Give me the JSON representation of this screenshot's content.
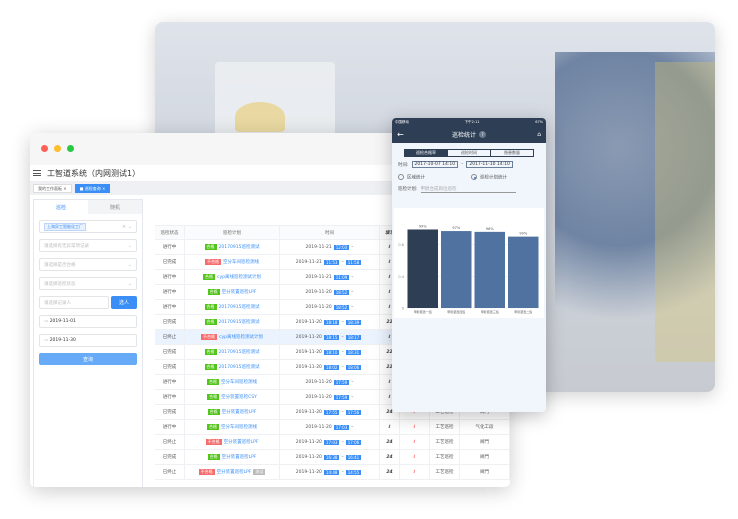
{
  "app": {
    "title": "工智道系统（内网测试1）",
    "tabs": [
      {
        "label": "我的工作面板"
      },
      {
        "label": "巡检查询"
      }
    ]
  },
  "left": {
    "tabs": [
      "巡检",
      "随机"
    ],
    "plant": "上海异工智能化工厂",
    "abnormal_placeholder": "请选择有无异常项记录",
    "qualified_placeholder": "请选择是否合格",
    "status_placeholder": "请选择巡检状态",
    "recorder_placeholder": "请选择记录人",
    "select_label": "选人",
    "date_start": "2019-11-01",
    "date_end": "2019-11-30",
    "query_label": "查询"
  },
  "table": {
    "headers": [
      "巡检状态",
      "巡检计划",
      "时间",
      "填写"
    ],
    "rows": [
      {
        "status": "进行中",
        "result": "合格",
        "plan": "20170915巡检测试",
        "date": "2019-11-21",
        "start": "12:03",
        "end": "",
        "fill": "ℓ"
      },
      {
        "status": "已完成",
        "result": "不合格",
        "plan": "空分车间巡检测线",
        "date": "2019-11-21",
        "start": "11:53",
        "end": "11:58",
        "fill": "ℓ"
      },
      {
        "status": "进行中",
        "result": "合格",
        "plan": "cyp离线巡检测试计划",
        "date": "2019-11-21",
        "start": "11:09",
        "end": "",
        "fill": "ℓ"
      },
      {
        "status": "进行中",
        "result": "合格",
        "plan": "空分装置巡检LPF",
        "date": "2019-11-20",
        "start": "18:52",
        "end": "",
        "fill": "ℓ"
      },
      {
        "status": "进行中",
        "result": "合格",
        "plan": "20170915巡检测试",
        "date": "2019-11-20",
        "start": "18:52",
        "end": "",
        "fill": "ℓ"
      },
      {
        "status": "已完成",
        "result": "合格",
        "plan": "20170915巡检测试",
        "date": "2019-11-20",
        "start": "18:18",
        "end": "18:39",
        "fill": "22"
      },
      {
        "status": "已终止",
        "result": "不合格",
        "plan": "cyp离线巡检测试计划",
        "date": "2019-11-20",
        "start": "18:15",
        "end": "18:17",
        "fill": "ℓ"
      },
      {
        "status": "已完成",
        "result": "合格",
        "plan": "20170915巡检测试",
        "date": "2019-11-20",
        "start": "18:10",
        "end": "18:31",
        "fill": "22"
      },
      {
        "status": "已完成",
        "result": "合格",
        "plan": "20170915巡检测试",
        "date": "2019-11-20",
        "start": "18:02",
        "end": "18:06",
        "fill": "22"
      },
      {
        "status": "进行中",
        "result": "合格",
        "plan": "空分车间巡检测线",
        "date": "2019-11-20",
        "start": "17:59",
        "end": "",
        "fill": "ℓ"
      },
      {
        "status": "进行中",
        "result": "合格",
        "plan": "空分装置巡检CSY",
        "date": "2019-11-20",
        "start": "17:59",
        "end": "",
        "fill": "ℓ"
      },
      {
        "status": "已完成",
        "result": "合格",
        "plan": "空分装置巡检LPF",
        "date": "2019-11-20",
        "start": "17:55",
        "end": "17:56",
        "fill": "24",
        "icon": "ℓ",
        "type": "工艺巡检",
        "area": "阀門"
      },
      {
        "status": "进行中",
        "result": "合格",
        "plan": "空分车间巡检测线",
        "date": "2019-11-20",
        "start": "17:03",
        "end": "",
        "fill": "ℓ",
        "icon": "ℓ",
        "type": "工艺巡检",
        "area": "气化工段"
      },
      {
        "status": "已终止",
        "result": "不合格",
        "plan": "空分装置巡检LPF",
        "date": "2019-11-20",
        "start": "17:03",
        "end": "17:06",
        "fill": "24",
        "icon": "ℓ",
        "type": "工艺巡检",
        "area": "阀門"
      },
      {
        "status": "已完成",
        "result": "合格",
        "plan": "空分装置巡检LPF",
        "date": "2019-11-20",
        "start": "16:38",
        "end": "16:41",
        "fill": "24",
        "icon": "ℓ",
        "type": "工艺巡检",
        "area": "阀門"
      },
      {
        "status": "已终止",
        "result": "不合格",
        "plan": "空分装置巡检LPF",
        "date": "2019-11-20",
        "start": "14:48",
        "end": "14:55",
        "fill": "24",
        "icon": "ℓ",
        "type": "工艺巡检",
        "area": "阀門",
        "extra": "测试"
      }
    ]
  },
  "phone": {
    "carrier": "中国移动",
    "clock": "下午2:11",
    "battery": "67%",
    "title": "巡检统计",
    "segments": [
      "巡检合格率",
      "巡检时间",
      "隐患数量"
    ],
    "time_label": "时间:",
    "date_from": "2017-10-07 14:10",
    "date_to": "2017-11-10 14:10",
    "radio_area": "区域统计",
    "radio_plan": "巡检计划统计",
    "plan_label": "巡检计划:",
    "plan_placeholder": "甲醇合成岗位巡检"
  },
  "chart_data": {
    "type": "bar",
    "categories": [
      "甲醇装置一班",
      "甲醇装置四班",
      "甲醇装置三班",
      "甲醇装置二班"
    ],
    "values": [
      0.99,
      0.97,
      0.96,
      0.9
    ],
    "data_labels": [
      "99%",
      "97%",
      "96%",
      "90%"
    ],
    "y_ticks": [
      "0",
      "0.4",
      "0.8"
    ],
    "ylim": [
      0,
      1.16
    ],
    "colors": [
      "#2d3e55",
      "#4f72a0",
      "#4f72a0",
      "#4f72a0"
    ]
  },
  "colors": {
    "accent": "#3a8ef6",
    "ok": "#52c41a",
    "ng": "#f56c6c",
    "phone_nav": "#2d3e55"
  }
}
